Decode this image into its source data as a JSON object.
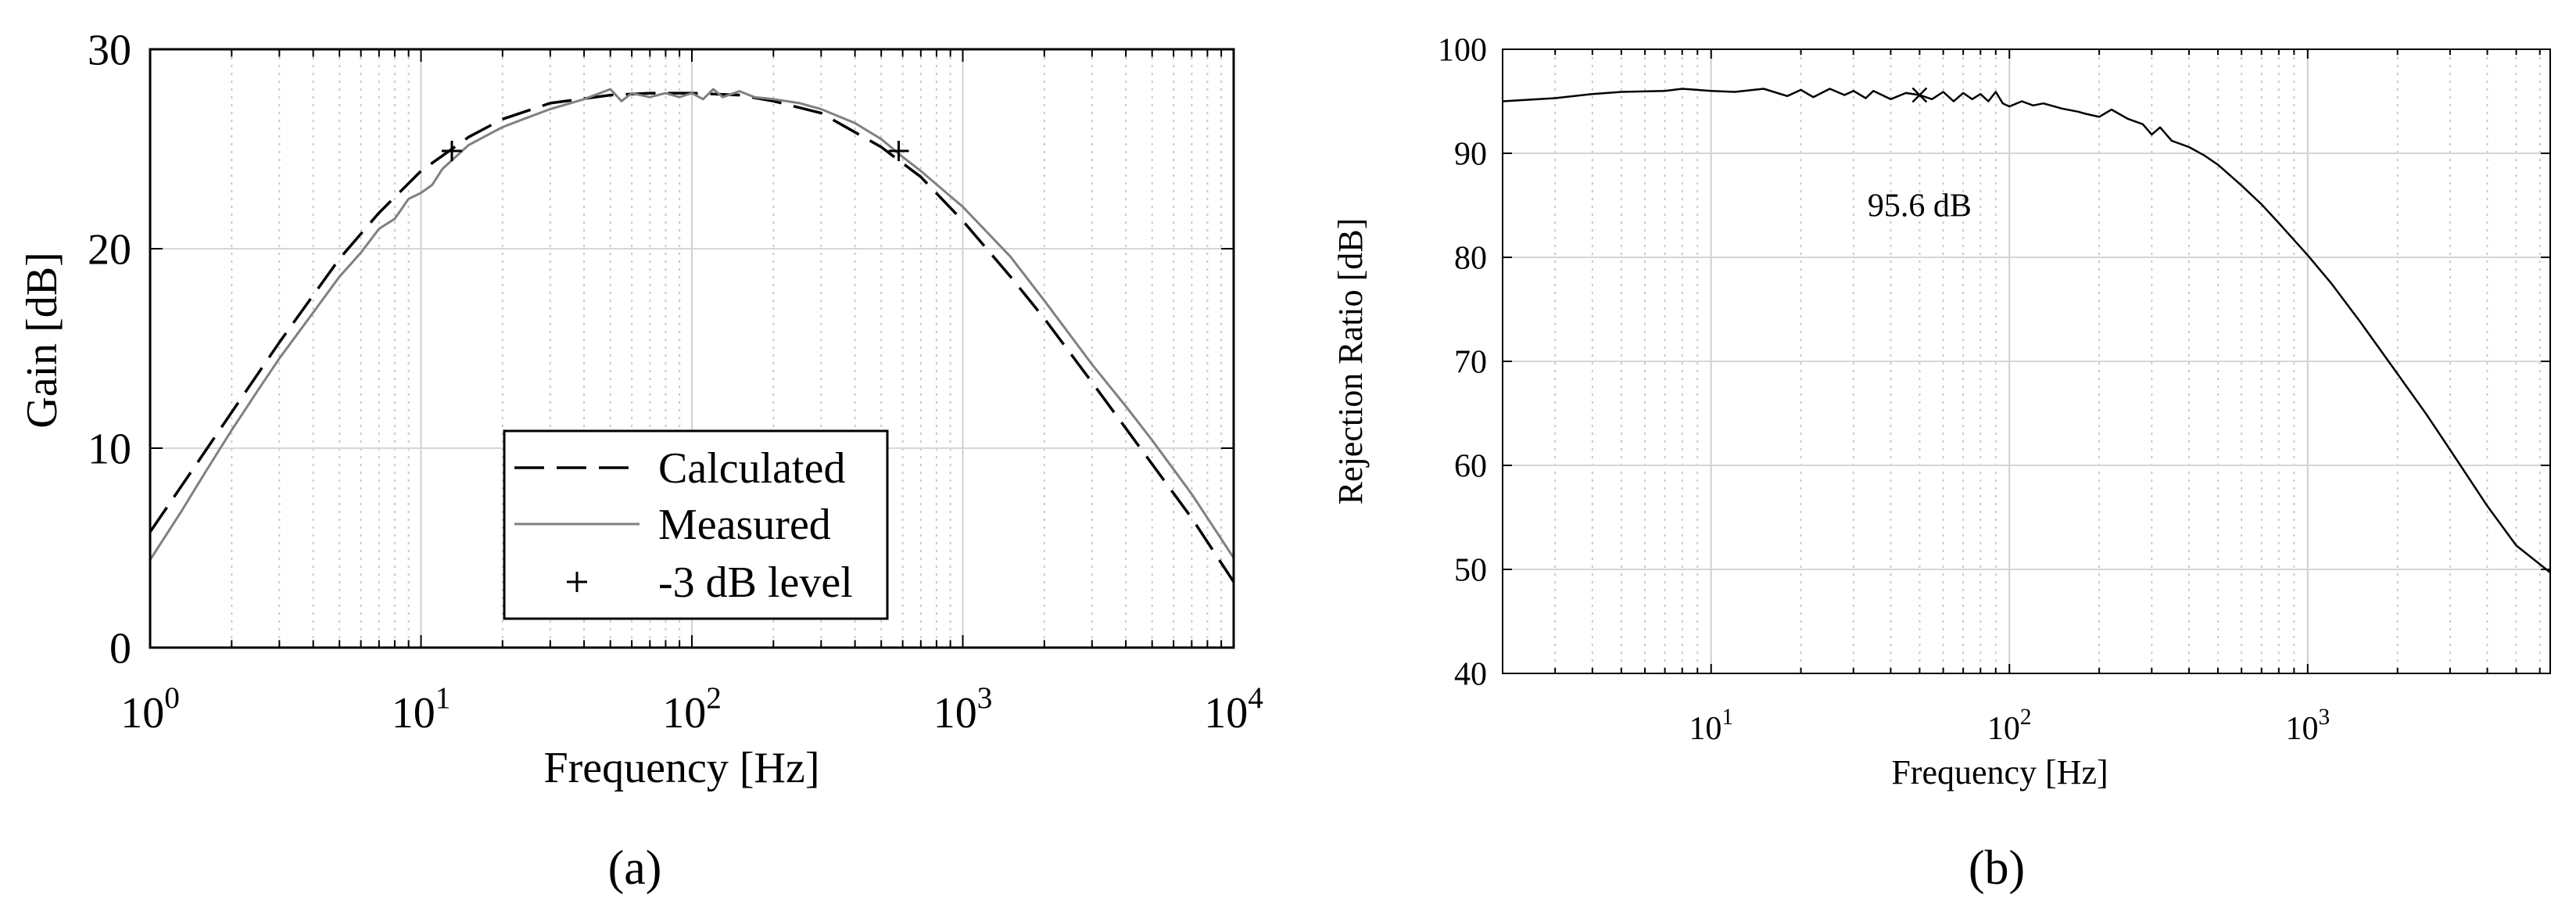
{
  "chart_data": [
    {
      "panel_label": "(a)",
      "type": "line",
      "xscale": "log",
      "xlim": [
        1,
        10000
      ],
      "ylim": [
        0,
        30
      ],
      "xlabel": "Frequency [Hz]",
      "ylabel": "Gain [dB]",
      "x_ticks": [
        {
          "base": "10",
          "exp": "0"
        },
        {
          "base": "10",
          "exp": "1"
        },
        {
          "base": "10",
          "exp": "2"
        },
        {
          "base": "10",
          "exp": "3"
        },
        {
          "base": "10",
          "exp": "4"
        }
      ],
      "y_ticks": [
        "0",
        "10",
        "20",
        "30"
      ],
      "grid": true,
      "legend_position": "lower-center",
      "series": [
        {
          "name": "Calculated",
          "style": "dashed",
          "color": "#000000",
          "x": [
            1,
            1.5,
            2,
            3,
            5,
            7,
            10,
            15,
            20,
            30,
            50,
            70,
            100,
            150,
            200,
            300,
            500,
            700,
            1000,
            1500,
            2000,
            3000,
            5000,
            7000,
            10000
          ],
          "y": [
            5.8,
            9.3,
            11.8,
            15.3,
            19.5,
            21.8,
            23.9,
            25.6,
            26.5,
            27.3,
            27.7,
            27.8,
            27.8,
            27.7,
            27.4,
            26.8,
            25.1,
            23.6,
            21.4,
            18.6,
            16.5,
            13.3,
            9.2,
            6.5,
            3.3
          ]
        },
        {
          "name": "Measured",
          "style": "solid",
          "color": "#808080",
          "x": [
            1,
            1.3,
            1.6,
            2,
            2.5,
            3,
            4,
            5,
            6,
            7,
            8,
            9,
            10,
            11,
            12,
            15,
            20,
            25,
            30,
            40,
            50,
            55,
            60,
            70,
            80,
            90,
            100,
            110,
            120,
            130,
            150,
            170,
            200,
            250,
            300,
            400,
            500,
            600,
            700,
            1000,
            1500,
            2000,
            3000,
            4000,
            5000,
            7000,
            10000
          ],
          "y": [
            4.4,
            6.8,
            8.8,
            10.9,
            12.9,
            14.5,
            16.8,
            18.6,
            19.8,
            21.0,
            21.5,
            22.5,
            22.8,
            23.2,
            24.0,
            25.2,
            26.1,
            26.6,
            27.0,
            27.5,
            28.0,
            27.4,
            27.8,
            27.6,
            27.8,
            27.6,
            27.8,
            27.5,
            28.0,
            27.6,
            27.9,
            27.6,
            27.5,
            27.3,
            27.0,
            26.3,
            25.5,
            24.6,
            23.9,
            22.1,
            19.6,
            17.4,
            14.2,
            12.1,
            10.4,
            7.7,
            4.5
          ]
        },
        {
          "name": "-3 dB level",
          "style": "marker-plus",
          "color": "#000000",
          "x": [
            13,
            580
          ],
          "y": [
            24.9,
            24.9
          ]
        }
      ]
    },
    {
      "panel_label": "(b)",
      "type": "line",
      "xscale": "log",
      "xlim": [
        2,
        6500
      ],
      "ylim": [
        40,
        100
      ],
      "xlabel": "Frequency [Hz]",
      "ylabel": "Rejection Ratio [dB]",
      "x_ticks": [
        {
          "base": "10",
          "exp": "1"
        },
        {
          "base": "10",
          "exp": "2"
        },
        {
          "base": "10",
          "exp": "3"
        }
      ],
      "y_ticks": [
        "40",
        "50",
        "60",
        "70",
        "80",
        "90",
        "100"
      ],
      "grid": true,
      "annotation": {
        "text": "95.6 dB",
        "marker_x": 50,
        "marker_y": 95.6,
        "text_x": 50,
        "text_y": 85
      },
      "series": [
        {
          "name": "",
          "style": "solid",
          "color": "#000000",
          "x": [
            2,
            3,
            4,
            5,
            7,
            8,
            10,
            12,
            15,
            18,
            20,
            22,
            25,
            28,
            30,
            33,
            35,
            40,
            45,
            50,
            55,
            60,
            65,
            70,
            75,
            80,
            85,
            90,
            95,
            100,
            110,
            120,
            130,
            150,
            170,
            180,
            200,
            220,
            250,
            280,
            300,
            320,
            350,
            400,
            450,
            500,
            600,
            700,
            800,
            1000,
            1200,
            1500,
            2000,
            2500,
            3000,
            4000,
            5000,
            6500
          ],
          "y": [
            95.0,
            95.3,
            95.7,
            95.9,
            96.0,
            96.2,
            96.0,
            95.9,
            96.2,
            95.5,
            96.1,
            95.4,
            96.2,
            95.6,
            96.0,
            95.3,
            96.0,
            95.2,
            95.8,
            95.6,
            95.2,
            95.9,
            95.0,
            95.8,
            95.2,
            95.7,
            95.0,
            95.9,
            94.8,
            94.5,
            95.0,
            94.6,
            94.8,
            94.3,
            94.0,
            93.8,
            93.5,
            94.2,
            93.3,
            92.8,
            91.8,
            92.5,
            91.2,
            90.6,
            89.8,
            88.9,
            86.9,
            85.1,
            83.3,
            80.2,
            77.5,
            73.8,
            68.8,
            64.9,
            61.5,
            56.1,
            52.3,
            49.7
          ]
        }
      ]
    }
  ]
}
